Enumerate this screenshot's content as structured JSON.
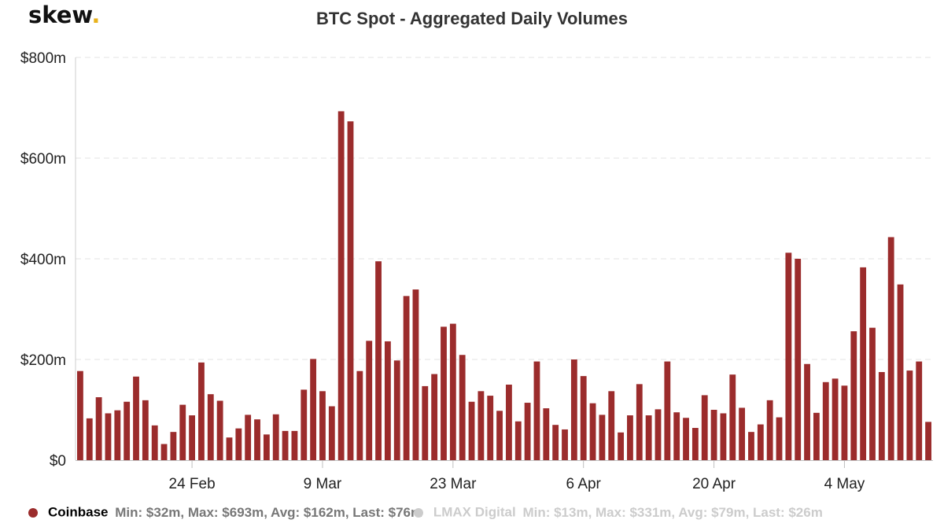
{
  "logo": {
    "text": "skew",
    "dot": "."
  },
  "chart_data": {
    "type": "bar",
    "title": "BTC Spot - Aggregated Daily Volumes",
    "xlabel": "",
    "ylabel": "",
    "ylim": [
      0,
      800
    ],
    "yticks": [
      {
        "value": 0,
        "label": "$0"
      },
      {
        "value": 200,
        "label": "$200m"
      },
      {
        "value": 400,
        "label": "$400m"
      },
      {
        "value": 600,
        "label": "$600m"
      },
      {
        "value": 800,
        "label": "$800m"
      }
    ],
    "xticks": [
      {
        "index": 12,
        "label": "24 Feb"
      },
      {
        "index": 26,
        "label": "9 Mar"
      },
      {
        "index": 40,
        "label": "23 Mar"
      },
      {
        "index": 54,
        "label": "6 Apr"
      },
      {
        "index": 68,
        "label": "20 Apr"
      },
      {
        "index": 82,
        "label": "4 May"
      }
    ],
    "grid": true,
    "series": [
      {
        "name": "Coinbase",
        "color": "#9b2c2c",
        "values": [
          177,
          83,
          125,
          93,
          99,
          116,
          166,
          119,
          69,
          32,
          56,
          110,
          89,
          194,
          131,
          118,
          45,
          63,
          90,
          81,
          51,
          91,
          58,
          58,
          140,
          201,
          137,
          107,
          693,
          673,
          177,
          237,
          395,
          236,
          198,
          326,
          339,
          147,
          171,
          265,
          271,
          209,
          116,
          137,
          128,
          98,
          150,
          77,
          114,
          196,
          103,
          70,
          61,
          200,
          167,
          113,
          90,
          137,
          55,
          89,
          151,
          89,
          101,
          196,
          95,
          84,
          64,
          129,
          100,
          93,
          170,
          104,
          56,
          71,
          119,
          85,
          412,
          400,
          191,
          94,
          155,
          162,
          148,
          256,
          383,
          263,
          175,
          443,
          349,
          178,
          196,
          76
        ]
      }
    ],
    "legend": {
      "position": "bottom-left",
      "items": [
        {
          "name": "Coinbase",
          "stats": "Min: $32m, Max: $693m, Avg: $162m, Last: $76m",
          "color": "#9b2c2c",
          "active": true
        },
        {
          "name": "LMAX Digital",
          "stats": "Min: $13m, Max: $331m, Avg: $79m, Last: $26m",
          "color": "#cccccc",
          "active": false
        }
      ]
    }
  }
}
